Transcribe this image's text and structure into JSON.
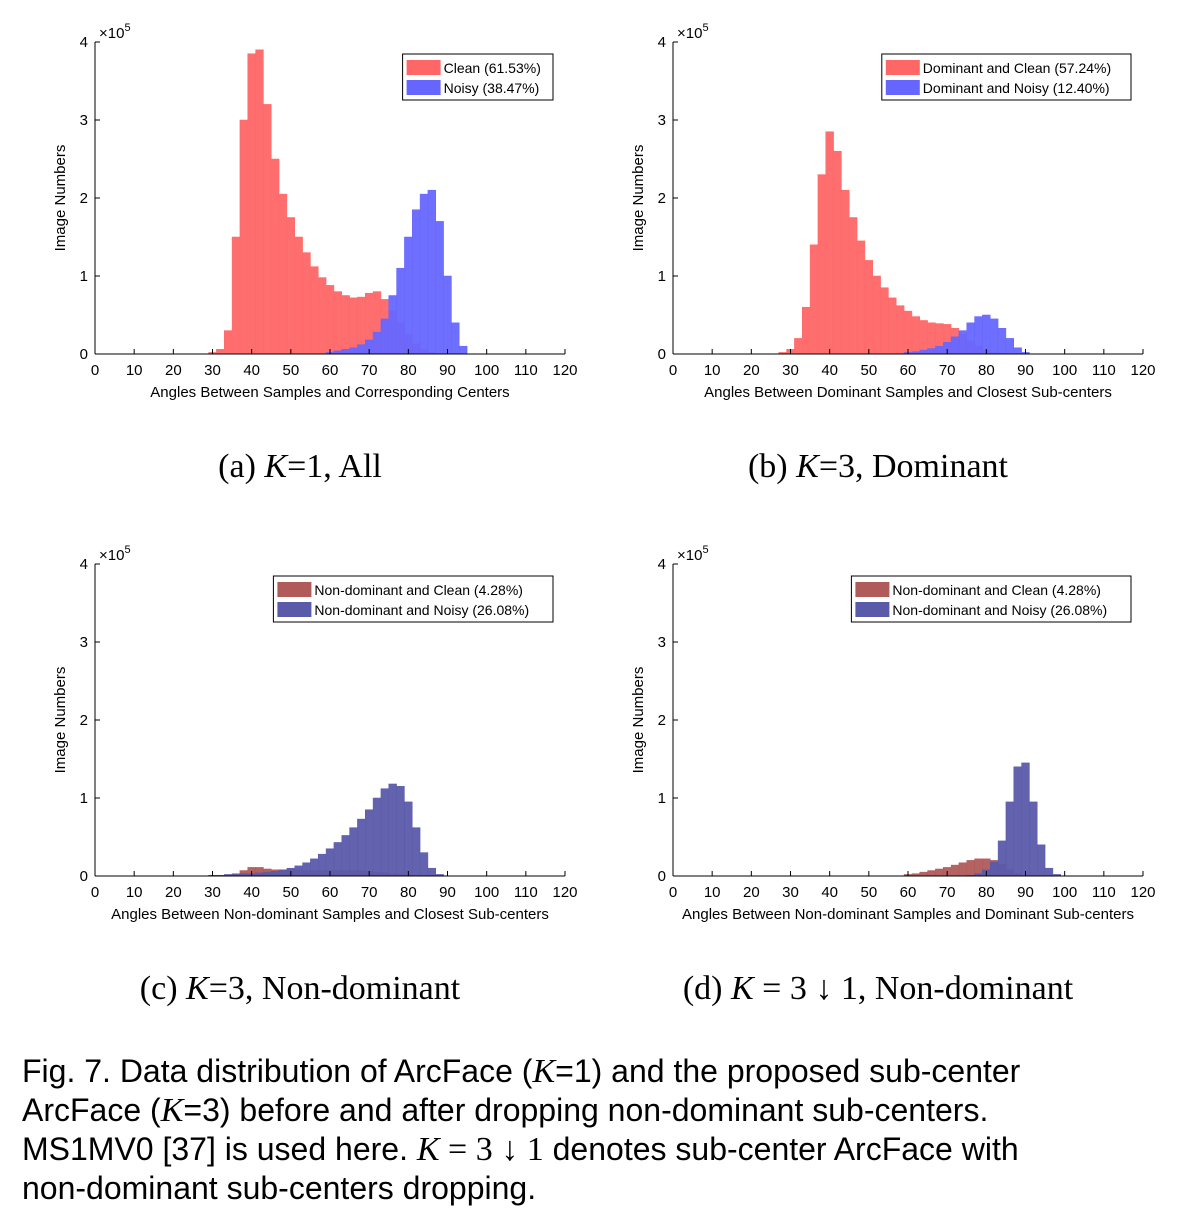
{
  "chart_data": [
    {
      "type": "bar",
      "panel": "a",
      "ylabel": "Image Numbers",
      "xlabel": "Angles Between Samples and Corresponding Centers",
      "exponent": "×10",
      "exponent_power": "5",
      "xlim": [
        0,
        120
      ],
      "ylim": [
        0,
        4
      ],
      "xticks": [
        "0",
        "10",
        "20",
        "30",
        "40",
        "50",
        "60",
        "70",
        "80",
        "90",
        "100",
        "110",
        "120"
      ],
      "yticks": [
        "0",
        "1",
        "2",
        "3",
        "4"
      ],
      "legend_position": "top-right",
      "series": [
        {
          "name": "Clean (61.53%)",
          "color": "#ff6666",
          "x": [
            30,
            32,
            34,
            36,
            38,
            40,
            42,
            44,
            46,
            48,
            50,
            52,
            54,
            56,
            58,
            60,
            62,
            64,
            66,
            68,
            70,
            72,
            74,
            76,
            78,
            80,
            82,
            84,
            86,
            88
          ],
          "values": [
            0.02,
            0.06,
            0.3,
            1.5,
            3.0,
            3.85,
            3.9,
            3.2,
            2.5,
            2.05,
            1.75,
            1.5,
            1.3,
            1.12,
            0.98,
            0.88,
            0.8,
            0.75,
            0.72,
            0.73,
            0.78,
            0.8,
            0.7,
            0.55,
            0.4,
            0.25,
            0.13,
            0.06,
            0.02,
            0.01
          ]
        },
        {
          "name": "Noisy (38.47%)",
          "color": "#6666ff",
          "x": [
            60,
            62,
            64,
            66,
            68,
            70,
            72,
            74,
            76,
            78,
            80,
            82,
            84,
            86,
            88,
            90,
            92,
            94
          ],
          "values": [
            0.02,
            0.04,
            0.06,
            0.08,
            0.12,
            0.18,
            0.28,
            0.45,
            0.75,
            1.1,
            1.5,
            1.85,
            2.05,
            2.1,
            1.7,
            1.0,
            0.4,
            0.1
          ]
        }
      ]
    },
    {
      "type": "bar",
      "panel": "b",
      "ylabel": "Image Numbers",
      "xlabel": "Angles Between Dominant Samples and Closest Sub-centers",
      "exponent": "×10",
      "exponent_power": "5",
      "xlim": [
        0,
        120
      ],
      "ylim": [
        0,
        4
      ],
      "xticks": [
        "0",
        "10",
        "20",
        "30",
        "40",
        "50",
        "60",
        "70",
        "80",
        "90",
        "100",
        "110",
        "120"
      ],
      "yticks": [
        "0",
        "1",
        "2",
        "3",
        "4"
      ],
      "legend_position": "top-right",
      "series": [
        {
          "name": "Dominant and Clean (57.24%)",
          "color": "#ff6666",
          "x": [
            28,
            30,
            32,
            34,
            36,
            38,
            40,
            42,
            44,
            46,
            48,
            50,
            52,
            54,
            56,
            58,
            60,
            62,
            64,
            66,
            68,
            70,
            72,
            74,
            76,
            78,
            80,
            82,
            84
          ],
          "values": [
            0.02,
            0.06,
            0.2,
            0.6,
            1.4,
            2.3,
            2.85,
            2.6,
            2.1,
            1.75,
            1.45,
            1.2,
            1.0,
            0.85,
            0.72,
            0.62,
            0.55,
            0.48,
            0.43,
            0.4,
            0.39,
            0.38,
            0.33,
            0.25,
            0.17,
            0.1,
            0.05,
            0.02,
            0.01
          ]
        },
        {
          "name": "Dominant and Noisy (12.40%)",
          "color": "#6666ff",
          "x": [
            60,
            62,
            64,
            66,
            68,
            70,
            72,
            74,
            76,
            78,
            80,
            82,
            84,
            86,
            88,
            90
          ],
          "values": [
            0.02,
            0.03,
            0.05,
            0.07,
            0.1,
            0.15,
            0.22,
            0.3,
            0.4,
            0.48,
            0.5,
            0.45,
            0.33,
            0.2,
            0.08,
            0.02
          ]
        }
      ]
    },
    {
      "type": "bar",
      "panel": "c",
      "ylabel": "Image Numbers",
      "xlabel": "Angles Between Non-dominant Samples and Closest Sub-centers",
      "exponent": "×10",
      "exponent_power": "5",
      "xlim": [
        0,
        120
      ],
      "ylim": [
        0,
        4
      ],
      "xticks": [
        "0",
        "10",
        "20",
        "30",
        "40",
        "50",
        "60",
        "70",
        "80",
        "90",
        "100",
        "110",
        "120"
      ],
      "yticks": [
        "0",
        "1",
        "2",
        "3",
        "4"
      ],
      "legend_position": "top-right",
      "series": [
        {
          "name": "Non-dominant and Clean (4.28%)",
          "color": "#b05a5a",
          "x": [
            34,
            36,
            38,
            40,
            42,
            44,
            46,
            48,
            50,
            52,
            54,
            56,
            58,
            60,
            62,
            64,
            66,
            68,
            70,
            72,
            74,
            76,
            78,
            80
          ],
          "values": [
            0.01,
            0.03,
            0.07,
            0.11,
            0.11,
            0.09,
            0.08,
            0.08,
            0.08,
            0.08,
            0.07,
            0.07,
            0.07,
            0.07,
            0.07,
            0.07,
            0.07,
            0.07,
            0.06,
            0.05,
            0.04,
            0.03,
            0.02,
            0.01
          ]
        },
        {
          "name": "Non-dominant and Noisy (26.08%)",
          "color": "#5a5aaa",
          "x": [
            30,
            32,
            34,
            36,
            38,
            40,
            42,
            44,
            46,
            48,
            50,
            52,
            54,
            56,
            58,
            60,
            62,
            64,
            66,
            68,
            70,
            72,
            74,
            76,
            78,
            80,
            82,
            84,
            86,
            88
          ],
          "values": [
            0.01,
            0.01,
            0.02,
            0.02,
            0.03,
            0.03,
            0.04,
            0.05,
            0.06,
            0.08,
            0.1,
            0.13,
            0.17,
            0.22,
            0.28,
            0.35,
            0.43,
            0.52,
            0.62,
            0.73,
            0.85,
            1.0,
            1.12,
            1.18,
            1.15,
            0.95,
            0.62,
            0.3,
            0.1,
            0.02
          ]
        }
      ]
    },
    {
      "type": "bar",
      "panel": "d",
      "ylabel": "Image Numbers",
      "xlabel": "Angles Between Non-dominant Samples and Dominant Sub-centers",
      "exponent": "×10",
      "exponent_power": "5",
      "xlim": [
        0,
        120
      ],
      "ylim": [
        0,
        4
      ],
      "xticks": [
        "0",
        "10",
        "20",
        "30",
        "40",
        "50",
        "60",
        "70",
        "80",
        "90",
        "100",
        "110",
        "120"
      ],
      "yticks": [
        "0",
        "1",
        "2",
        "3",
        "4"
      ],
      "legend_position": "top-right",
      "series": [
        {
          "name": "Non-dominant and Clean (4.28%)",
          "color": "#b05a5a",
          "x": [
            60,
            62,
            64,
            66,
            68,
            70,
            72,
            74,
            76,
            78,
            80,
            82,
            84,
            86,
            88,
            90
          ],
          "values": [
            0.02,
            0.03,
            0.05,
            0.07,
            0.09,
            0.11,
            0.14,
            0.17,
            0.2,
            0.22,
            0.22,
            0.2,
            0.15,
            0.08,
            0.03,
            0.01
          ]
        },
        {
          "name": "Non-dominant and Noisy (26.08%)",
          "color": "#5a5aaa",
          "x": [
            76,
            78,
            80,
            82,
            84,
            86,
            88,
            90,
            92,
            94,
            96,
            98
          ],
          "values": [
            0.01,
            0.03,
            0.08,
            0.18,
            0.45,
            0.95,
            1.4,
            1.45,
            0.95,
            0.4,
            0.1,
            0.02
          ]
        }
      ]
    }
  ],
  "subcaptions": [
    {
      "pre": "(a)  ",
      "var": "K",
      "post": "=1, All"
    },
    {
      "pre": "(b)  ",
      "var": "K",
      "post": "=3, Dominant"
    },
    {
      "pre": "(c)  ",
      "var": "K",
      "post": "=3, Non-dominant"
    },
    {
      "pre": "(d)  ",
      "var": "K",
      "post": " = 3 ↓ 1, Non-dominant"
    }
  ],
  "caption": {
    "line1_a": "Fig. 7. Data distribution of ArcFace (",
    "line1_var": "K",
    "line1_b": "=1) and the proposed sub-center",
    "line2_a": "ArcFace (",
    "line2_var": "K",
    "line2_b": "=3) before and after dropping non-dominant sub-centers.",
    "line3_a": "MS1MV0 [37] is used here. ",
    "line3_var": "K",
    "line3_math": " = 3 ↓ 1",
    "line3_b": " denotes sub-center ArcFace with",
    "line4": "non-dominant sub-centers dropping."
  }
}
